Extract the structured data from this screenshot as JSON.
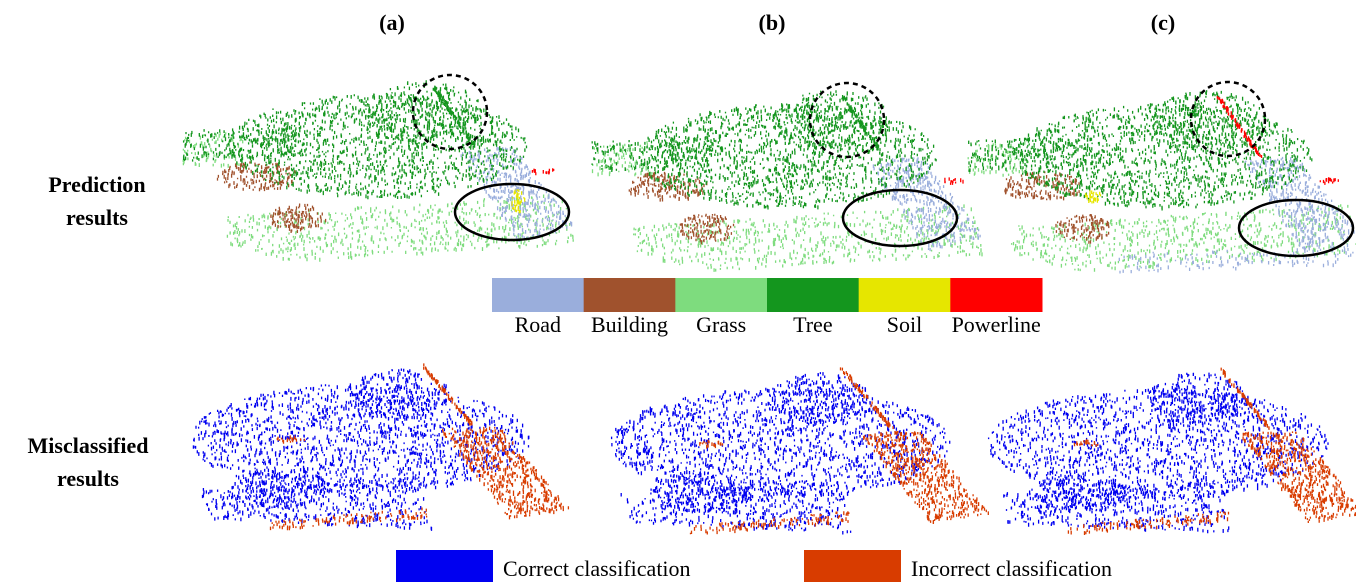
{
  "columns": [
    "(a)",
    "(b)",
    "(c)"
  ],
  "rows": [
    [
      "Prediction",
      "results"
    ],
    [
      "Misclassified",
      "results"
    ]
  ],
  "class_legend": [
    {
      "label": "Road",
      "color": "#9aaedc"
    },
    {
      "label": "Building",
      "color": "#a0522d"
    },
    {
      "label": "Grass",
      "color": "#7edc7e"
    },
    {
      "label": "Tree",
      "color": "#14961e"
    },
    {
      "label": "Soil",
      "color": "#e6e600"
    },
    {
      "label": "Powerline",
      "color": "#ff0000"
    }
  ],
  "result_legend": [
    {
      "label": "Correct classification",
      "color": "#0000f0"
    },
    {
      "label": "Incorrect classification",
      "color": "#d83c00"
    }
  ]
}
